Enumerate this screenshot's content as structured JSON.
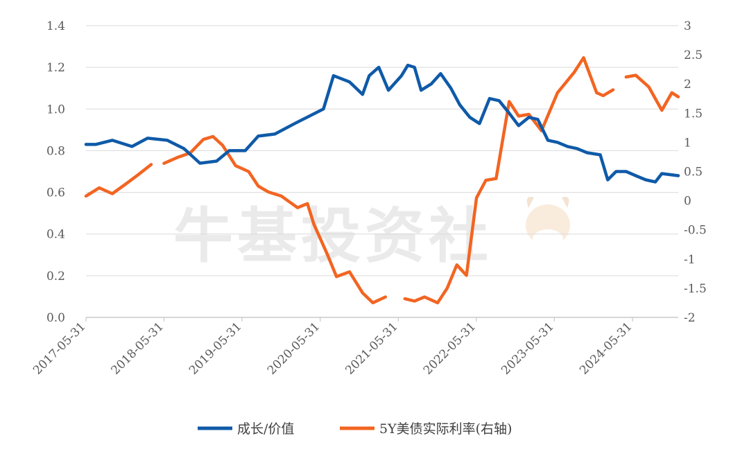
{
  "chart_data": {
    "type": "line",
    "title": "",
    "watermark": "牛基投资社",
    "colors": {
      "growth_value": "#0f5aa8",
      "tips_5y": "#f26522"
    },
    "x_axis": {
      "type": "date",
      "range": [
        "2017-05-31",
        "2024-12-31"
      ],
      "tick_labels": [
        "2017-05-31",
        "2018-05-31",
        "2019-05-31",
        "2020-05-31",
        "2021-05-31",
        "2022-05-31",
        "2023-05-31",
        "2024-05-31"
      ],
      "label_rotation": "-45deg"
    },
    "y_left": {
      "range": [
        0,
        1.4
      ],
      "ticks": [
        "0.0",
        "0.2",
        "0.4",
        "0.6",
        "0.8",
        "1.0",
        "1.2",
        "1.4"
      ]
    },
    "y_right": {
      "range": [
        -2,
        3
      ],
      "ticks": [
        "-2",
        "-1.5",
        "-1",
        "-0.5",
        "0",
        "0.5",
        "1",
        "1.5",
        "2",
        "2.5",
        "3"
      ]
    },
    "legend": {
      "placement": "bottom-center"
    },
    "series": [
      {
        "name": "成长/价值",
        "axis": "left",
        "color": "#0f5aa8",
        "points": [
          [
            "2017-05-31",
            0.83
          ],
          [
            "2017-07-15",
            0.83
          ],
          [
            "2017-10-01",
            0.85
          ],
          [
            "2018-01-01",
            0.82
          ],
          [
            "2018-03-15",
            0.86
          ],
          [
            "2018-06-15",
            0.85
          ],
          [
            "2018-09-01",
            0.81
          ],
          [
            "2018-11-15",
            0.74
          ],
          [
            "2019-02-01",
            0.75
          ],
          [
            "2019-04-01",
            0.8
          ],
          [
            "2019-06-15",
            0.8
          ],
          [
            "2019-08-15",
            0.87
          ],
          [
            "2019-11-01",
            0.88
          ],
          [
            "2020-02-01",
            0.93
          ],
          [
            "2020-06-15",
            1.0
          ],
          [
            "2020-08-01",
            1.16
          ],
          [
            "2020-10-15",
            1.13
          ],
          [
            "2020-12-15",
            1.07
          ],
          [
            "2021-01-15",
            1.16
          ],
          [
            "2021-03-01",
            1.2
          ],
          [
            "2021-04-15",
            1.09
          ],
          [
            "2021-06-15",
            1.16
          ],
          [
            "2021-07-15",
            1.21
          ],
          [
            "2021-08-15",
            1.2
          ],
          [
            "2021-09-15",
            1.09
          ],
          [
            "2021-11-01",
            1.12
          ],
          [
            "2021-12-15",
            1.17
          ],
          [
            "2022-02-01",
            1.1
          ],
          [
            "2022-03-15",
            1.02
          ],
          [
            "2022-05-01",
            0.96
          ],
          [
            "2022-06-15",
            0.93
          ],
          [
            "2022-08-01",
            1.05
          ],
          [
            "2022-09-15",
            1.04
          ],
          [
            "2022-11-01",
            0.98
          ],
          [
            "2022-12-15",
            0.92
          ],
          [
            "2023-02-01",
            0.96
          ],
          [
            "2023-03-15",
            0.95
          ],
          [
            "2023-05-01",
            0.85
          ],
          [
            "2023-06-15",
            0.84
          ],
          [
            "2023-08-01",
            0.82
          ],
          [
            "2023-09-15",
            0.81
          ],
          [
            "2023-11-01",
            0.79
          ],
          [
            "2024-01-01",
            0.78
          ],
          [
            "2024-02-05",
            0.66
          ],
          [
            "2024-03-15",
            0.7
          ],
          [
            "2024-05-01",
            0.7
          ],
          [
            "2024-06-15",
            0.68
          ],
          [
            "2024-08-01",
            0.66
          ],
          [
            "2024-09-15",
            0.65
          ],
          [
            "2024-10-15",
            0.69
          ],
          [
            "2024-12-31",
            0.68
          ]
        ]
      },
      {
        "name": "5Y美债实际利率(右轴)",
        "axis": "right",
        "color": "#f26522",
        "segments": [
          [
            [
              "2017-05-31",
              0.08
            ],
            [
              "2017-08-01",
              0.22
            ],
            [
              "2017-10-01",
              0.12
            ],
            [
              "2017-12-01",
              0.28
            ],
            [
              "2018-02-01",
              0.45
            ],
            [
              "2018-04-01",
              0.62
            ]
          ],
          [
            [
              "2018-05-31",
              0.64
            ],
            [
              "2018-08-01",
              0.74
            ],
            [
              "2018-10-01",
              0.82
            ],
            [
              "2018-12-01",
              1.05
            ],
            [
              "2019-01-15",
              1.1
            ],
            [
              "2019-03-01",
              0.95
            ],
            [
              "2019-05-01",
              0.6
            ],
            [
              "2019-07-01",
              0.5
            ],
            [
              "2019-08-15",
              0.25
            ],
            [
              "2019-10-01",
              0.15
            ],
            [
              "2019-12-01",
              0.08
            ],
            [
              "2020-02-15",
              -0.12
            ],
            [
              "2020-04-01",
              -0.05
            ],
            [
              "2020-05-01",
              -0.4
            ],
            [
              "2020-07-01",
              -0.9
            ],
            [
              "2020-08-15",
              -1.3
            ],
            [
              "2020-10-15",
              -1.22
            ],
            [
              "2020-12-15",
              -1.58
            ],
            [
              "2021-02-01",
              -1.75
            ],
            [
              "2021-04-01",
              -1.65
            ]
          ],
          [
            [
              "2021-07-01",
              -1.68
            ],
            [
              "2021-08-15",
              -1.72
            ],
            [
              "2021-10-01",
              -1.65
            ],
            [
              "2021-12-01",
              -1.75
            ],
            [
              "2022-01-15",
              -1.5
            ],
            [
              "2022-03-01",
              -1.1
            ],
            [
              "2022-04-15",
              -1.28
            ],
            [
              "2022-06-01",
              0.05
            ],
            [
              "2022-07-15",
              0.35
            ],
            [
              "2022-09-01",
              0.38
            ],
            [
              "2022-11-01",
              1.7
            ],
            [
              "2022-12-15",
              1.45
            ],
            [
              "2023-02-01",
              1.48
            ],
            [
              "2023-04-01",
              1.2
            ],
            [
              "2023-06-15",
              1.85
            ],
            [
              "2023-09-01",
              2.2
            ],
            [
              "2023-10-15",
              2.45
            ],
            [
              "2023-12-15",
              1.85
            ],
            [
              "2024-01-15",
              1.8
            ],
            [
              "2024-03-01",
              1.9
            ]
          ],
          [
            [
              "2024-05-01",
              2.12
            ],
            [
              "2024-06-15",
              2.15
            ],
            [
              "2024-08-15",
              1.95
            ],
            [
              "2024-10-15",
              1.55
            ],
            [
              "2024-12-01",
              1.85
            ],
            [
              "2024-12-31",
              1.78
            ]
          ]
        ]
      }
    ]
  }
}
